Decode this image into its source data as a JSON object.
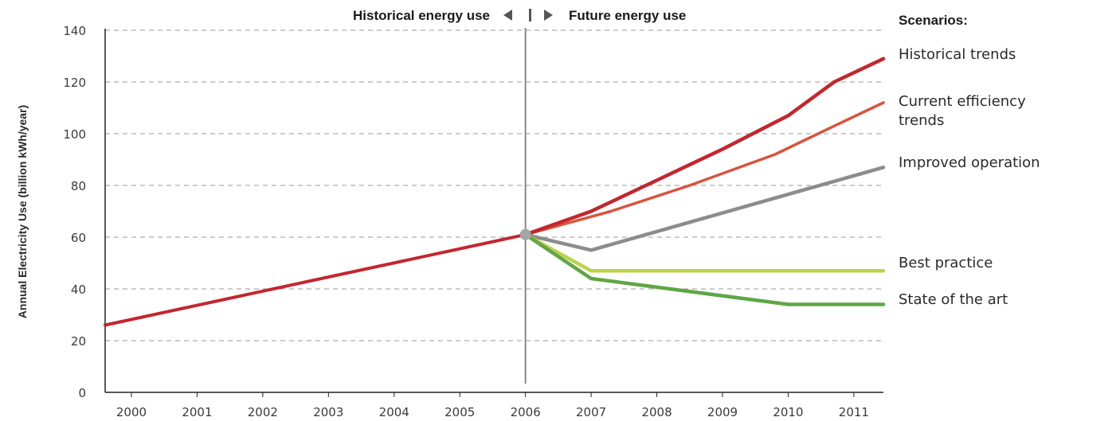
{
  "chart_data": {
    "type": "line",
    "title": "",
    "xlabel": "",
    "ylabel": "Annual Electricity Use (billion kWh/year)",
    "categories": [
      "2000",
      "2001",
      "2002",
      "2003",
      "2004",
      "2005",
      "2006",
      "2007",
      "2008",
      "2009",
      "2010",
      "2011"
    ],
    "xlim": [
      1999.6,
      2011.45
    ],
    "ylim": [
      0,
      140
    ],
    "yticks": [
      0,
      20,
      40,
      60,
      80,
      100,
      120,
      140
    ],
    "grid": true,
    "divider_year": 2006,
    "headers": {
      "historical": "Historical energy use",
      "future": "Future energy use"
    },
    "legend_title": "Scenarios:",
    "historical_series": {
      "color": "#c4262e",
      "points": [
        [
          1999.6,
          26
        ],
        [
          2006,
          61
        ]
      ]
    },
    "series": [
      {
        "name": "Historical trends",
        "label_lines": [
          "Historical trends"
        ],
        "color": "#c4262e",
        "points": [
          [
            2006,
            61
          ],
          [
            2007,
            70
          ],
          [
            2008,
            82
          ],
          [
            2009,
            94
          ],
          [
            2010,
            107
          ],
          [
            2010.7,
            120
          ],
          [
            2011.45,
            129
          ]
        ]
      },
      {
        "name": "Current efficiency trends",
        "label_lines": [
          "Current efficiency",
          "trends"
        ],
        "color": "#d9533d",
        "points": [
          [
            2006,
            61
          ],
          [
            2007.3,
            70
          ],
          [
            2008.5,
            80
          ],
          [
            2009.8,
            92
          ],
          [
            2010.7,
            103
          ],
          [
            2011.45,
            112
          ]
        ]
      },
      {
        "name": "Improved operation",
        "label_lines": [
          "Improved operation"
        ],
        "color": "#8c8c8c",
        "points": [
          [
            2006,
            61
          ],
          [
            2007,
            55
          ],
          [
            2011.45,
            87
          ]
        ]
      },
      {
        "name": "Best practice",
        "label_lines": [
          "Best practice"
        ],
        "color": "#bcd24a",
        "points": [
          [
            2006,
            61
          ],
          [
            2007,
            47
          ],
          [
            2011.45,
            47
          ]
        ]
      },
      {
        "name": "State of the art",
        "label_lines": [
          "State of the art"
        ],
        "color": "#5fa645",
        "points": [
          [
            2006,
            61
          ],
          [
            2007,
            44
          ],
          [
            2010,
            34
          ],
          [
            2011.45,
            34
          ]
        ]
      }
    ],
    "marker_color": "#a5a5a5"
  }
}
